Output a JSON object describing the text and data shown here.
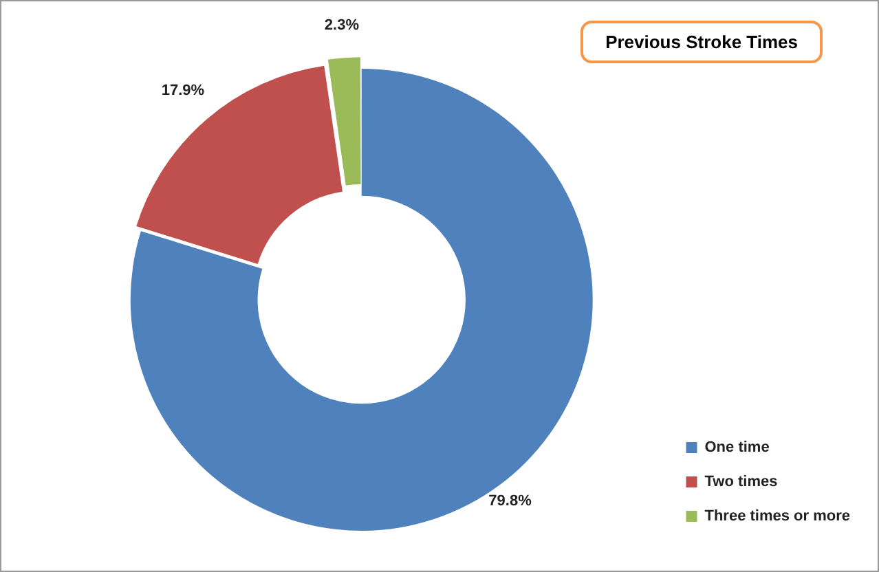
{
  "chart_data": {
    "type": "donut",
    "title": "Previous Stroke Times",
    "categories": [
      "One time",
      "Two times",
      "Three times or more"
    ],
    "values": [
      79.8,
      17.9,
      2.3
    ],
    "colors": [
      "#4f81bd",
      "#c0504d",
      "#9bbb59"
    ],
    "value_labels": [
      "79.8%",
      "17.9%",
      "2.3%"
    ],
    "legend": "bottom right"
  }
}
